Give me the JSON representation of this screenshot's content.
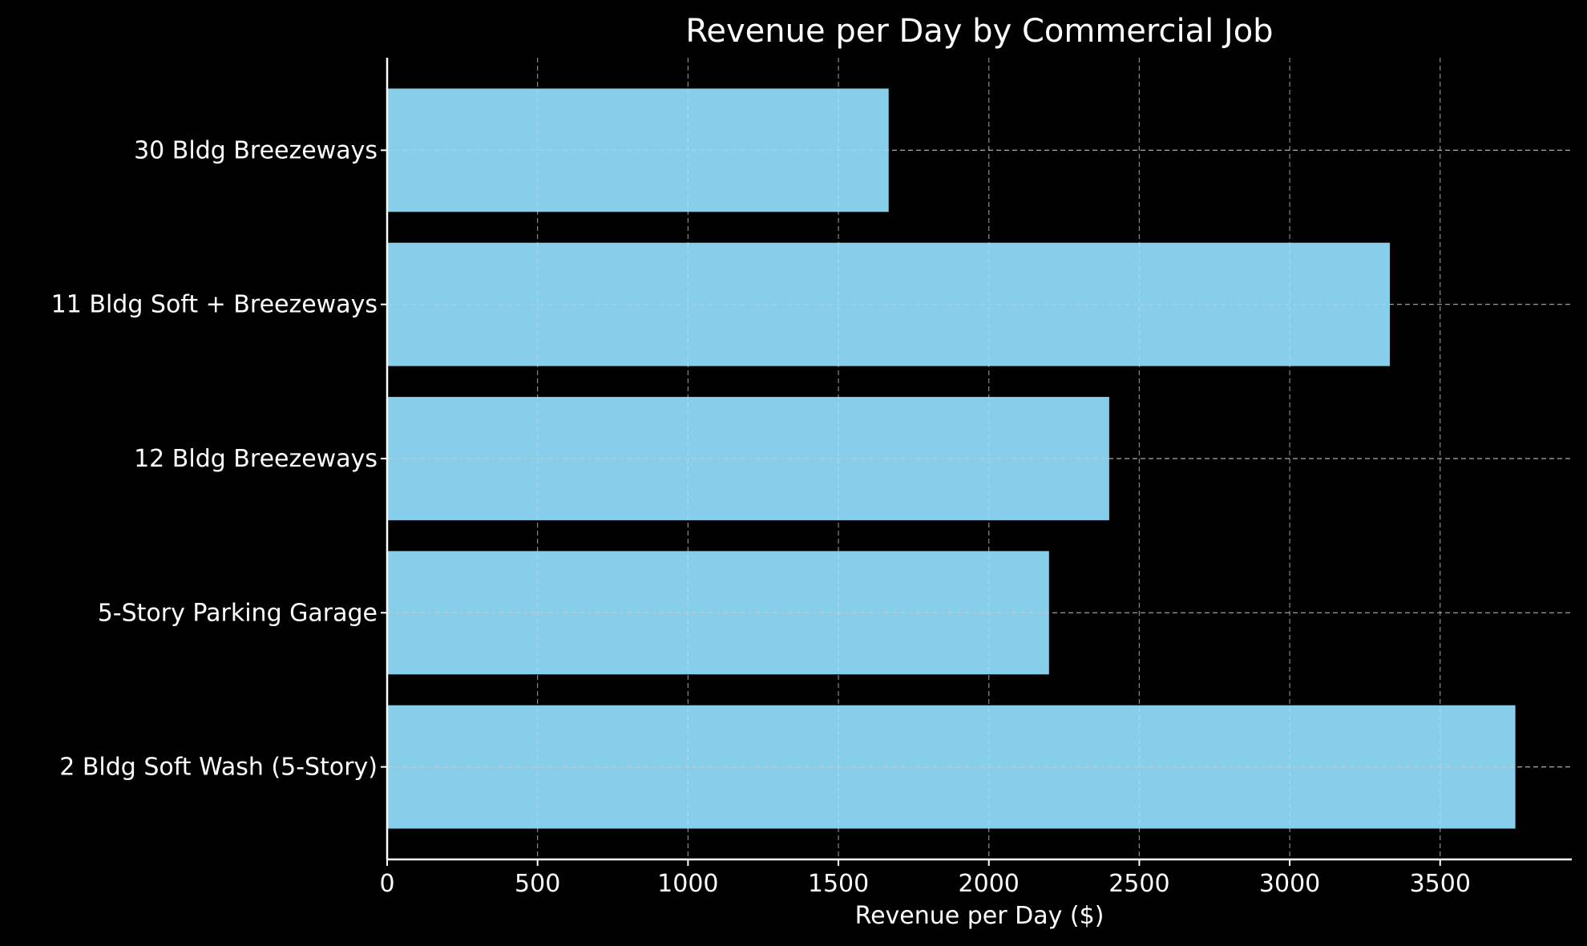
{
  "chart_data": {
    "type": "bar",
    "orientation": "horizontal",
    "title": "Revenue per Day by Commercial Job",
    "xlabel": "Revenue per Day ($)",
    "ylabel": "",
    "categories": [
      "2 Bldg Soft Wash (5-Story)",
      "5-Story Parking Garage",
      "12 Bldg Breezeways",
      "11 Bldg Soft + Breezeways",
      "30 Bldg Breezeways"
    ],
    "values": [
      3750,
      2200,
      2400,
      3333,
      1667
    ],
    "xlim": [
      0,
      3937.5
    ],
    "xticks": [
      0,
      500,
      1000,
      1500,
      2000,
      2500,
      3000,
      3500
    ],
    "xtick_labels": [
      "0",
      "500",
      "1000",
      "1500",
      "2000",
      "2500",
      "3000",
      "3500"
    ],
    "grid": true,
    "grid_style": "dashed",
    "legend": "none",
    "colors": {
      "background": "#000000",
      "bar": "#87ceeb",
      "text": "#ffffff",
      "axis": "#ffffff",
      "grid": "#808080"
    }
  }
}
